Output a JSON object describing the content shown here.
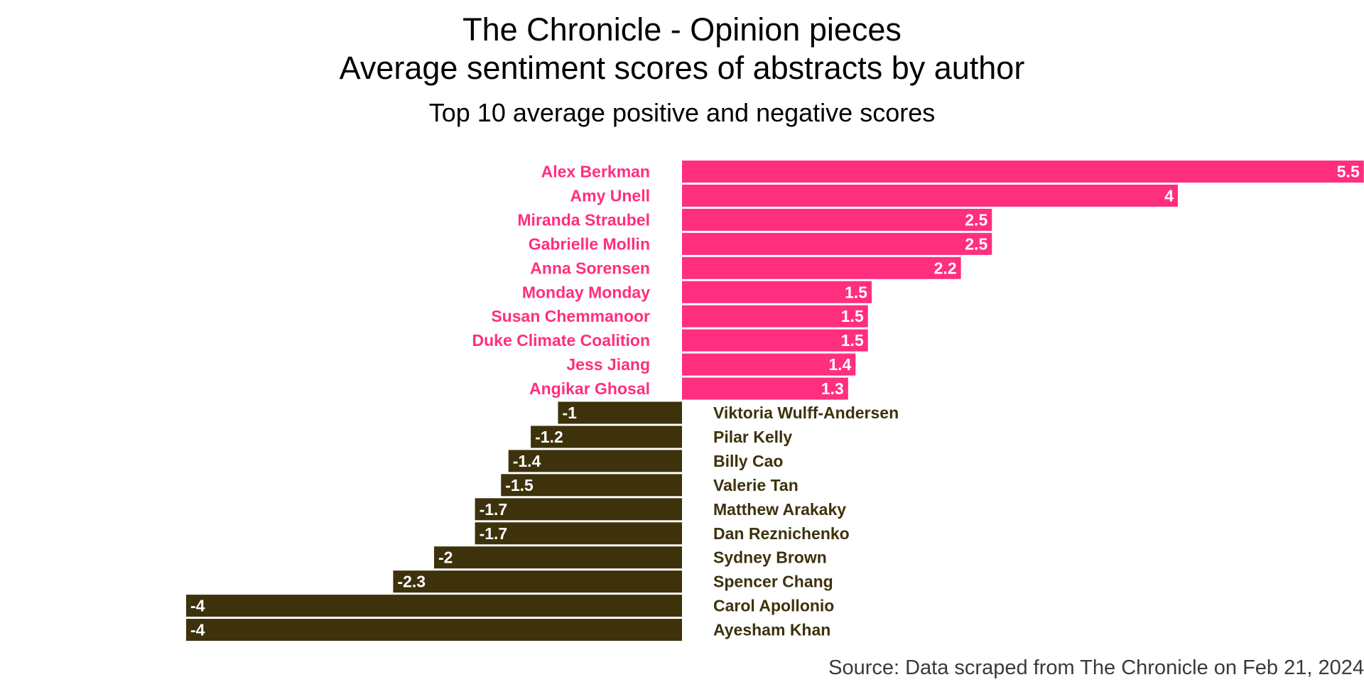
{
  "chart_data": {
    "type": "bar",
    "orientation": "horizontal",
    "title": "The Chronicle - Opinion pieces",
    "title_line2": "Average sentiment scores of abstracts by author",
    "subtitle": "Top 10 average positive and negative scores",
    "caption": "Source: Data scraped from The Chronicle on Feb 21, 2024",
    "grid": false,
    "axes_visible": false,
    "colors": {
      "positive": "#FF2E7E",
      "negative": "#3D320C"
    },
    "series": [
      {
        "group": "positive",
        "categories": [
          "Alex Berkman",
          "Amy Unell",
          "Miranda Straubel",
          "Gabrielle Mollin",
          "Anna Sorensen",
          "Monday Monday",
          "Susan Chemmanoor",
          "Duke Climate Coalition",
          "Jess Jiang",
          "Angikar Ghosal"
        ],
        "values": [
          5.5,
          4,
          2.5,
          2.5,
          2.25,
          1.53,
          1.5,
          1.5,
          1.4,
          1.34
        ],
        "labels": [
          "5.5",
          "4",
          "2.5",
          "2.5",
          "2.2",
          "1.5",
          "1.5",
          "1.5",
          "1.4",
          "1.3"
        ]
      },
      {
        "group": "negative",
        "categories": [
          "Viktoria Wulff-Andersen",
          "Pilar Kelly",
          "Billy Cao",
          "Valerie Tan",
          "Matthew Arakaky",
          "Dan Reznichenko",
          "Sydney Brown",
          "Spencer Chang",
          "Carol Apollonio",
          "Ayesham Khan"
        ],
        "values": [
          -1,
          -1.22,
          -1.4,
          -1.46,
          -1.67,
          -1.67,
          -2,
          -2.33,
          -4,
          -4
        ],
        "labels": [
          "-1",
          "-1.2",
          "-1.4",
          "-1.5",
          "-1.7",
          "-1.7",
          "-2",
          "-2.3",
          "-4",
          "-4"
        ]
      }
    ]
  }
}
